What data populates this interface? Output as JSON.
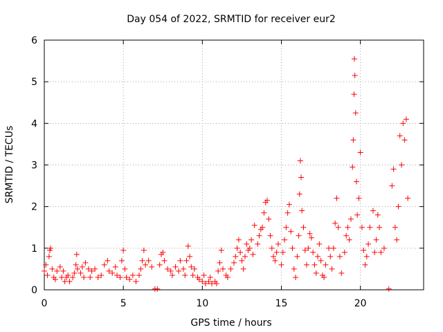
{
  "chart_data": {
    "type": "scatter",
    "title": "Day 054 of 2022, SRMTID for receiver eur2",
    "xlabel": "GPS time / hours",
    "ylabel": "SRMTID / TECUs",
    "xlim": [
      0,
      24
    ],
    "ylim": [
      0,
      6
    ],
    "xticks": [
      0,
      5,
      10,
      15,
      20
    ],
    "yticks": [
      0,
      1,
      2,
      3,
      4,
      5,
      6
    ],
    "xtick_labels": [
      "0",
      "5",
      "10",
      "15",
      "20"
    ],
    "ytick_labels": [
      "0",
      "1",
      "2",
      "3",
      "4",
      "5",
      "6"
    ],
    "grid": true,
    "marker": "+",
    "color": "#ff0000",
    "series": [
      {
        "name": "SRMTID",
        "points": [
          [
            0.0,
            0.45
          ],
          [
            0.1,
            0.6
          ],
          [
            0.2,
            0.35
          ],
          [
            0.3,
            0.8
          ],
          [
            0.35,
            0.95
          ],
          [
            0.4,
            1.0
          ],
          [
            0.5,
            0.5
          ],
          [
            0.6,
            0.3
          ],
          [
            0.7,
            0.25
          ],
          [
            0.8,
            0.45
          ],
          [
            1.0,
            0.55
          ],
          [
            1.1,
            0.3
          ],
          [
            1.2,
            0.45
          ],
          [
            1.3,
            0.2
          ],
          [
            1.4,
            0.3
          ],
          [
            1.5,
            0.35
          ],
          [
            1.6,
            0.2
          ],
          [
            1.8,
            0.3
          ],
          [
            1.9,
            0.4
          ],
          [
            2.0,
            0.6
          ],
          [
            2.05,
            0.85
          ],
          [
            2.1,
            0.5
          ],
          [
            2.3,
            0.4
          ],
          [
            2.4,
            0.55
          ],
          [
            2.5,
            0.3
          ],
          [
            2.6,
            0.65
          ],
          [
            2.8,
            0.5
          ],
          [
            2.9,
            0.3
          ],
          [
            3.0,
            0.45
          ],
          [
            3.2,
            0.5
          ],
          [
            3.4,
            0.3
          ],
          [
            3.6,
            0.35
          ],
          [
            3.8,
            0.6
          ],
          [
            4.0,
            0.7
          ],
          [
            4.1,
            0.45
          ],
          [
            4.3,
            0.4
          ],
          [
            4.5,
            0.55
          ],
          [
            4.6,
            0.35
          ],
          [
            4.8,
            0.3
          ],
          [
            4.9,
            0.7
          ],
          [
            5.0,
            0.95
          ],
          [
            5.1,
            0.5
          ],
          [
            5.2,
            0.3
          ],
          [
            5.4,
            0.25
          ],
          [
            5.6,
            0.35
          ],
          [
            5.8,
            0.2
          ],
          [
            6.0,
            0.35
          ],
          [
            6.1,
            0.5
          ],
          [
            6.2,
            0.7
          ],
          [
            6.3,
            0.95
          ],
          [
            6.4,
            0.6
          ],
          [
            6.6,
            0.7
          ],
          [
            6.8,
            0.55
          ],
          [
            7.0,
            0.02
          ],
          [
            7.15,
            0.02
          ],
          [
            7.3,
            0.6
          ],
          [
            7.4,
            0.85
          ],
          [
            7.5,
            0.9
          ],
          [
            7.6,
            0.7
          ],
          [
            7.8,
            0.5
          ],
          [
            8.0,
            0.45
          ],
          [
            8.1,
            0.35
          ],
          [
            8.3,
            0.55
          ],
          [
            8.5,
            0.45
          ],
          [
            8.6,
            0.7
          ],
          [
            8.8,
            0.5
          ],
          [
            8.9,
            0.35
          ],
          [
            9.0,
            0.7
          ],
          [
            9.1,
            1.05
          ],
          [
            9.2,
            0.8
          ],
          [
            9.3,
            0.55
          ],
          [
            9.4,
            0.35
          ],
          [
            9.5,
            0.5
          ],
          [
            9.7,
            0.3
          ],
          [
            9.8,
            0.25
          ],
          [
            10.0,
            0.2
          ],
          [
            10.1,
            0.35
          ],
          [
            10.2,
            0.15
          ],
          [
            10.4,
            0.2
          ],
          [
            10.5,
            0.3
          ],
          [
            10.6,
            0.15
          ],
          [
            10.8,
            0.2
          ],
          [
            10.9,
            0.15
          ],
          [
            11.0,
            0.45
          ],
          [
            11.1,
            0.65
          ],
          [
            11.2,
            0.95
          ],
          [
            11.3,
            0.5
          ],
          [
            11.5,
            0.35
          ],
          [
            11.6,
            0.3
          ],
          [
            11.8,
            0.5
          ],
          [
            12.0,
            0.65
          ],
          [
            12.1,
            0.8
          ],
          [
            12.2,
            1.0
          ],
          [
            12.3,
            1.2
          ],
          [
            12.4,
            0.9
          ],
          [
            12.5,
            0.7
          ],
          [
            12.6,
            0.5
          ],
          [
            12.7,
            0.8
          ],
          [
            12.8,
            1.1
          ],
          [
            12.9,
            0.95
          ],
          [
            13.0,
            1.0
          ],
          [
            13.1,
            1.2
          ],
          [
            13.2,
            0.85
          ],
          [
            13.3,
            1.55
          ],
          [
            13.5,
            1.1
          ],
          [
            13.6,
            1.3
          ],
          [
            13.7,
            1.45
          ],
          [
            13.8,
            1.5
          ],
          [
            13.9,
            1.85
          ],
          [
            14.0,
            2.1
          ],
          [
            14.1,
            2.15
          ],
          [
            14.2,
            1.7
          ],
          [
            14.3,
            1.3
          ],
          [
            14.4,
            1.0
          ],
          [
            14.5,
            0.8
          ],
          [
            14.6,
            0.7
          ],
          [
            14.7,
            0.9
          ],
          [
            14.8,
            1.1
          ],
          [
            15.0,
            0.6
          ],
          [
            15.1,
            0.9
          ],
          [
            15.2,
            1.2
          ],
          [
            15.3,
            1.5
          ],
          [
            15.4,
            1.85
          ],
          [
            15.5,
            2.05
          ],
          [
            15.6,
            1.4
          ],
          [
            15.7,
            1.0
          ],
          [
            15.8,
            0.5
          ],
          [
            15.9,
            0.3
          ],
          [
            16.0,
            0.8
          ],
          [
            16.1,
            1.3
          ],
          [
            16.15,
            2.3
          ],
          [
            16.2,
            3.1
          ],
          [
            16.25,
            2.7
          ],
          [
            16.3,
            1.9
          ],
          [
            16.4,
            1.5
          ],
          [
            16.5,
            0.95
          ],
          [
            16.6,
            0.6
          ],
          [
            16.7,
            1.0
          ],
          [
            16.8,
            1.35
          ],
          [
            16.9,
            1.25
          ],
          [
            17.0,
            0.9
          ],
          [
            17.1,
            0.6
          ],
          [
            17.2,
            0.4
          ],
          [
            17.3,
            0.8
          ],
          [
            17.4,
            1.1
          ],
          [
            17.5,
            0.7
          ],
          [
            17.6,
            0.35
          ],
          [
            17.7,
            0.3
          ],
          [
            17.8,
            0.6
          ],
          [
            18.0,
            1.0
          ],
          [
            18.1,
            0.8
          ],
          [
            18.2,
            0.5
          ],
          [
            18.3,
            1.0
          ],
          [
            18.4,
            1.6
          ],
          [
            18.5,
            2.2
          ],
          [
            18.6,
            1.5
          ],
          [
            18.7,
            0.8
          ],
          [
            18.8,
            0.4
          ],
          [
            19.0,
            0.9
          ],
          [
            19.1,
            1.3
          ],
          [
            19.2,
            1.5
          ],
          [
            19.3,
            1.2
          ],
          [
            19.4,
            1.7
          ],
          [
            19.5,
            2.95
          ],
          [
            19.55,
            3.6
          ],
          [
            19.6,
            4.7
          ],
          [
            19.62,
            5.55
          ],
          [
            19.65,
            5.15
          ],
          [
            19.7,
            4.25
          ],
          [
            19.75,
            2.6
          ],
          [
            19.8,
            1.8
          ],
          [
            19.9,
            2.2
          ],
          [
            20.0,
            3.3
          ],
          [
            20.1,
            1.5
          ],
          [
            20.2,
            0.95
          ],
          [
            20.3,
            0.6
          ],
          [
            20.4,
            0.8
          ],
          [
            20.5,
            1.1
          ],
          [
            20.6,
            1.5
          ],
          [
            20.8,
            1.9
          ],
          [
            20.9,
            0.9
          ],
          [
            21.0,
            1.2
          ],
          [
            21.1,
            1.8
          ],
          [
            21.2,
            1.5
          ],
          [
            21.3,
            0.9
          ],
          [
            21.5,
            1.0
          ],
          [
            21.8,
            0.02
          ],
          [
            22.0,
            2.5
          ],
          [
            22.1,
            2.9
          ],
          [
            22.2,
            1.5
          ],
          [
            22.3,
            1.2
          ],
          [
            22.4,
            2.0
          ],
          [
            22.5,
            3.7
          ],
          [
            22.6,
            3.0
          ],
          [
            22.7,
            4.0
          ],
          [
            22.8,
            3.6
          ],
          [
            22.9,
            4.1
          ],
          [
            23.0,
            2.2
          ]
        ]
      }
    ]
  }
}
